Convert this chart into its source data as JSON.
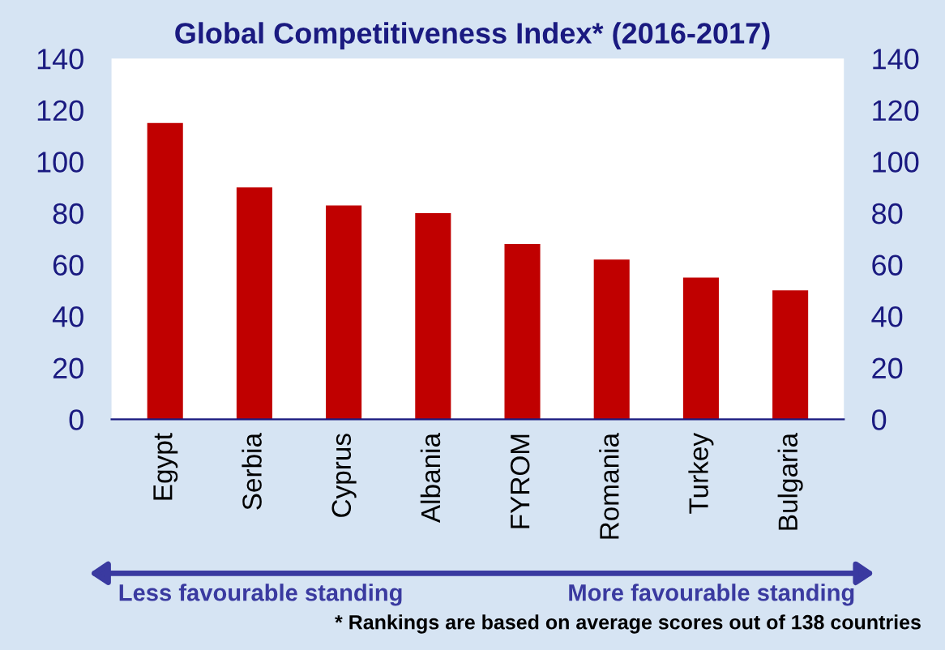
{
  "chart_data": {
    "type": "bar",
    "title": "Global Competitiveness Index* (2016-2017)",
    "categories": [
      "Egypt",
      "Serbia",
      "Cyprus",
      "Albania",
      "FYROM",
      "Romania",
      "Turkey",
      "Bulgaria"
    ],
    "series": [
      {
        "color": "#c00000",
        "values": [
          115,
          90,
          83,
          80,
          68,
          62,
          55,
          50
        ]
      }
    ],
    "ylim": [
      0,
      140
    ],
    "yticks": [
      0,
      20,
      40,
      60,
      80,
      100,
      120,
      140
    ],
    "y2lim": [
      0,
      140
    ],
    "y2ticks": [
      0,
      20,
      40,
      60,
      80,
      100,
      120,
      140
    ],
    "grid": false,
    "legend": false,
    "annotations": [
      "Less favourable standing",
      "More favourable standing",
      "* Rankings are based on average scores out of 138 countries"
    ]
  }
}
